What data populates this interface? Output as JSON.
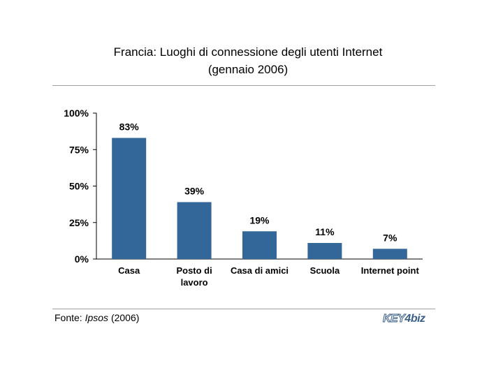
{
  "title": {
    "line1": "Francia: Luoghi di connessione degli utenti Internet",
    "line2": "(gennaio 2006)"
  },
  "source": {
    "prefix": "Fonte: ",
    "name": "Ipsos",
    "suffix": " (2006)"
  },
  "logo": {
    "part1": "KEY",
    "part2": "4",
    "part3": "biz"
  },
  "colors": {
    "bar": "#336699",
    "axis": "#000000",
    "rule": "#a0a0a0"
  },
  "chart_data": {
    "type": "bar",
    "title": "Francia: Luoghi di connessione degli utenti Internet (gennaio 2006)",
    "categories": [
      [
        "Casa"
      ],
      [
        "Posto di",
        "lavoro"
      ],
      [
        "Casa di amici"
      ],
      [
        "Scuola"
      ],
      [
        "Internet point"
      ]
    ],
    "values": [
      83,
      39,
      19,
      11,
      7
    ],
    "value_labels": [
      "83%",
      "39%",
      "19%",
      "11%",
      "7%"
    ],
    "ylim": [
      0,
      100
    ],
    "yticks": [
      0,
      25,
      50,
      75,
      100
    ],
    "ytick_labels": [
      "0%",
      "25%",
      "50%",
      "75%",
      "100%"
    ],
    "xlabel": "",
    "ylabel": "",
    "grid": false,
    "legend": "none"
  }
}
